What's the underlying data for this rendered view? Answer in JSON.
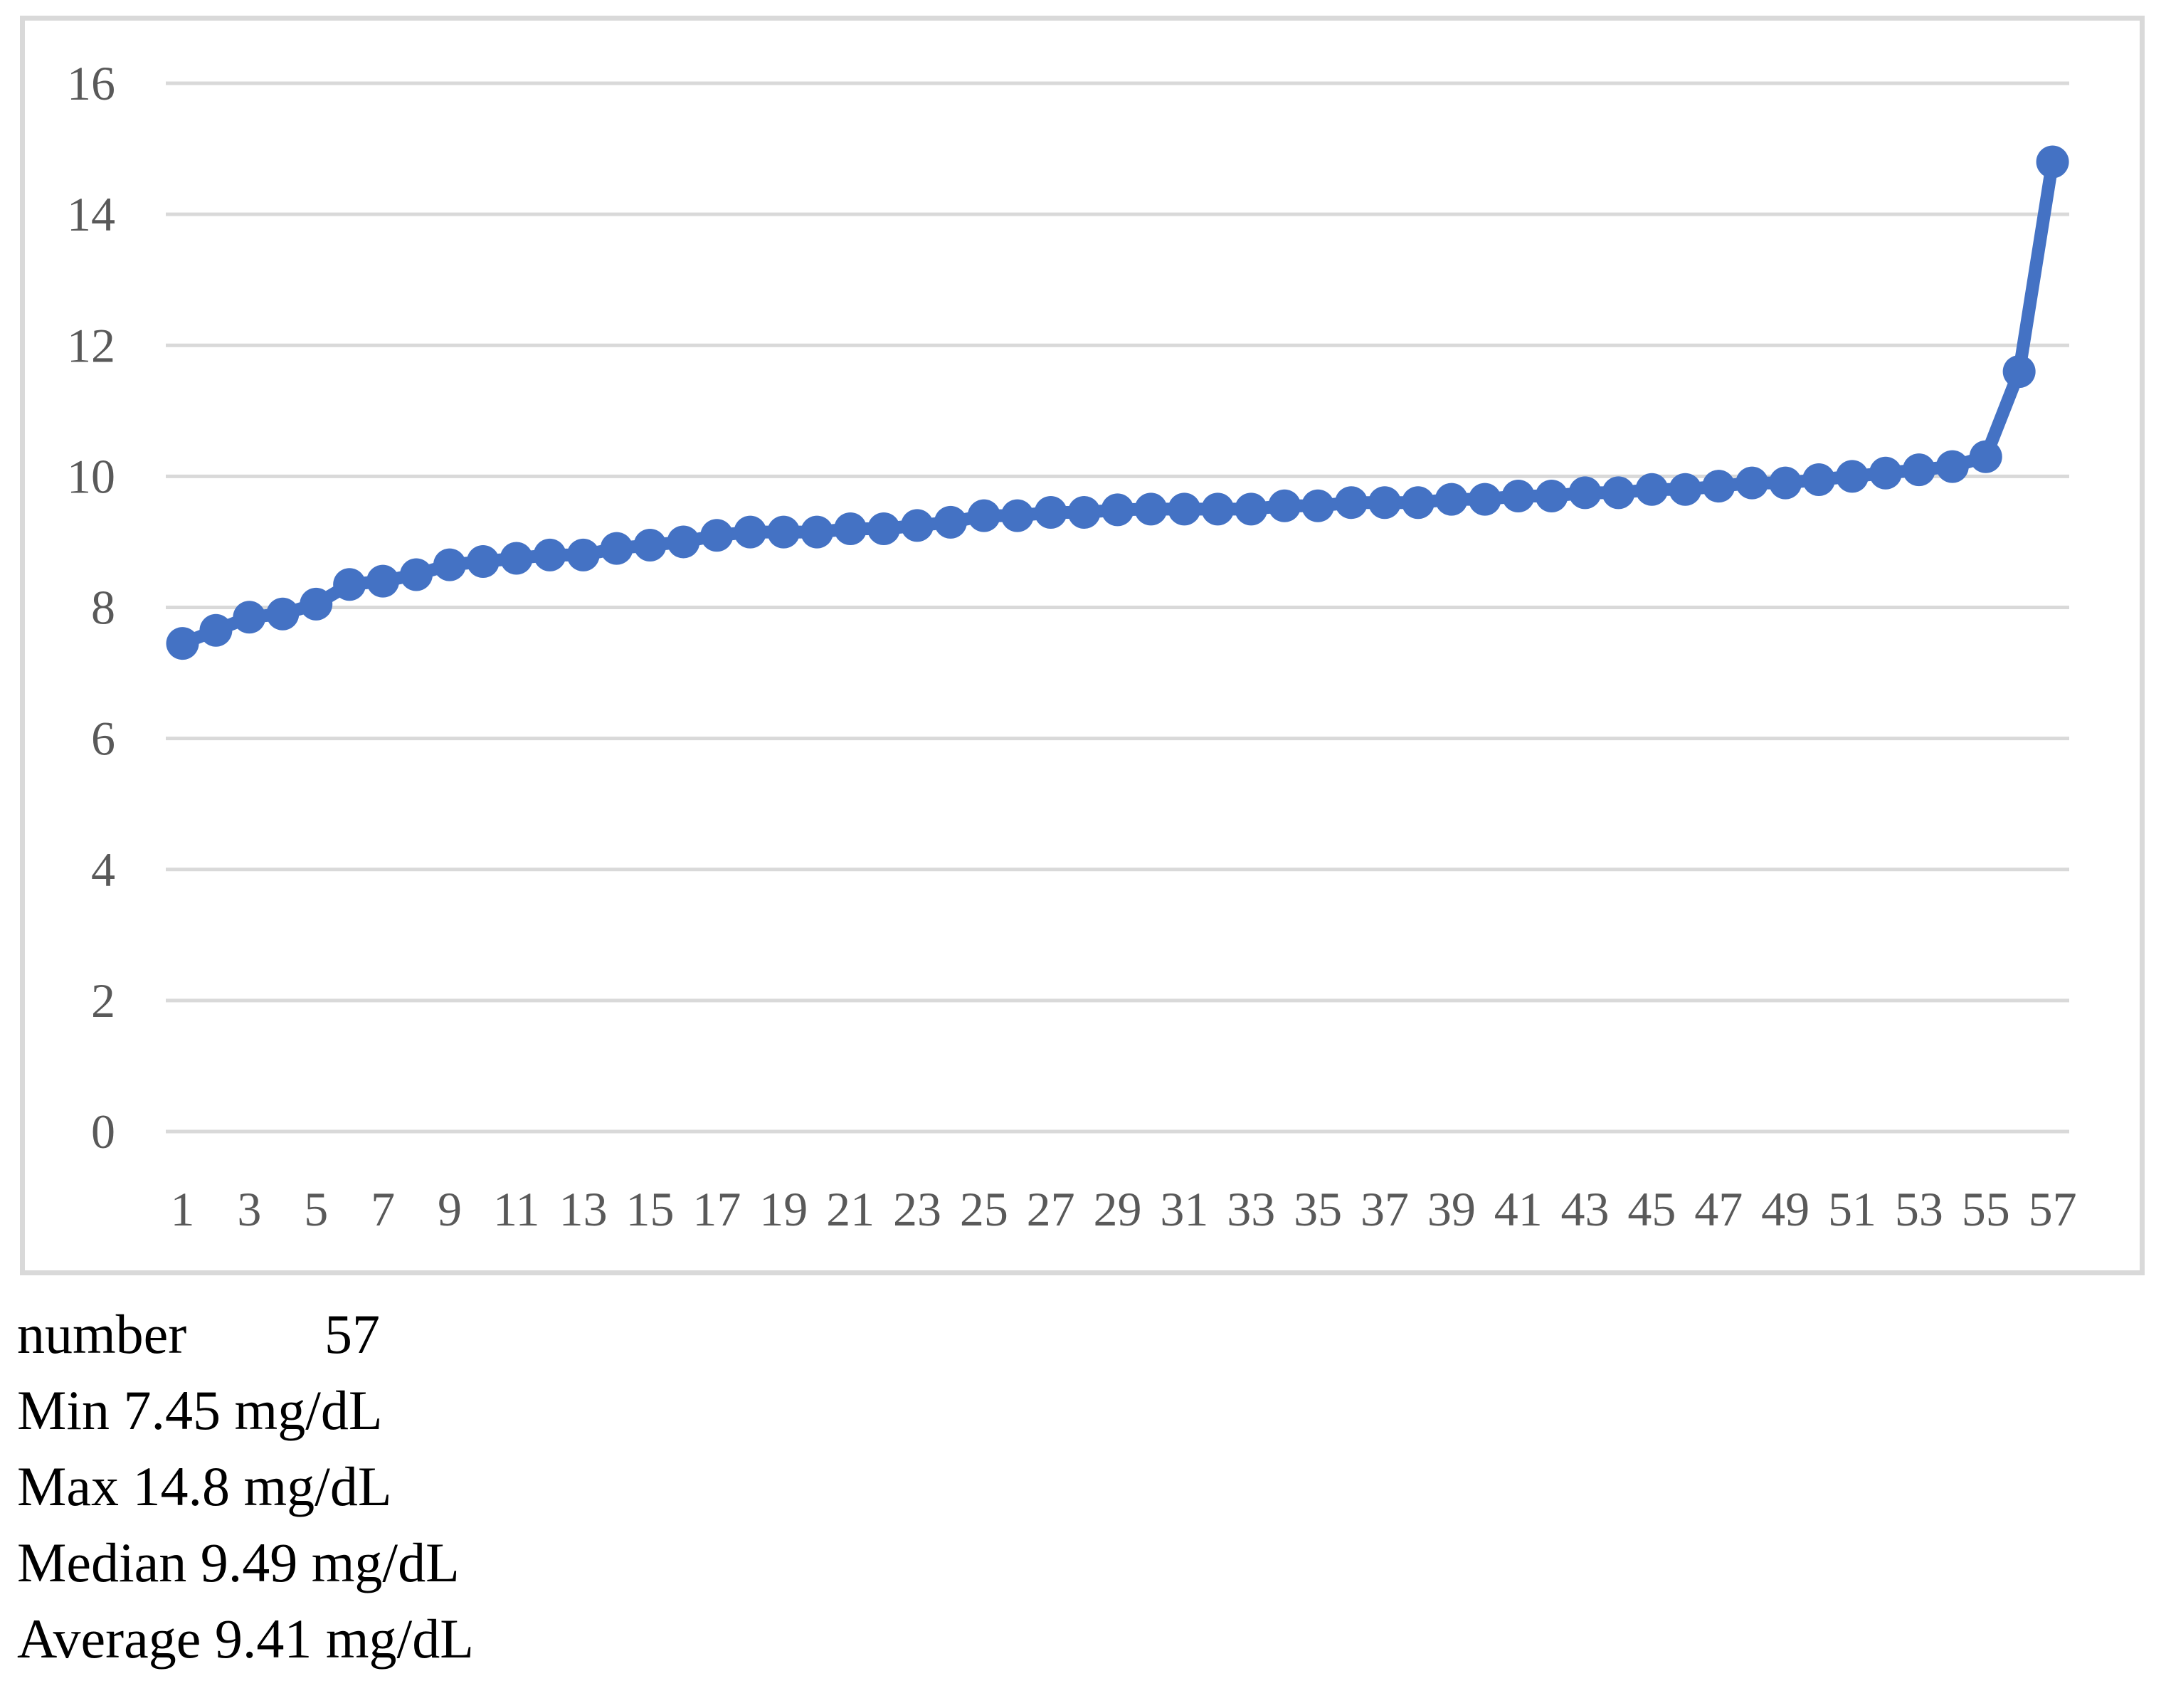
{
  "chart_data": {
    "type": "line",
    "title": "",
    "xlabel": "",
    "ylabel": "",
    "x": [
      1,
      2,
      3,
      4,
      5,
      6,
      7,
      8,
      9,
      10,
      11,
      12,
      13,
      14,
      15,
      16,
      17,
      18,
      19,
      20,
      21,
      22,
      23,
      24,
      25,
      26,
      27,
      28,
      29,
      30,
      31,
      32,
      33,
      34,
      35,
      36,
      37,
      38,
      39,
      40,
      41,
      42,
      43,
      44,
      45,
      46,
      47,
      48,
      49,
      50,
      51,
      52,
      53,
      54,
      55,
      56,
      57
    ],
    "values": [
      7.45,
      7.65,
      7.85,
      7.9,
      8.05,
      8.35,
      8.4,
      8.5,
      8.65,
      8.7,
      8.75,
      8.8,
      8.8,
      8.9,
      8.95,
      9.0,
      9.1,
      9.15,
      9.15,
      9.15,
      9.2,
      9.2,
      9.25,
      9.3,
      9.4,
      9.4,
      9.45,
      9.45,
      9.49,
      9.5,
      9.5,
      9.5,
      9.5,
      9.55,
      9.55,
      9.6,
      9.6,
      9.6,
      9.65,
      9.65,
      9.7,
      9.7,
      9.75,
      9.75,
      9.8,
      9.8,
      9.85,
      9.9,
      9.9,
      9.95,
      10.0,
      10.05,
      10.1,
      10.15,
      10.3,
      11.6,
      14.8
    ],
    "ylim": [
      0,
      16
    ],
    "y_ticks": [
      "16",
      "14",
      "12",
      "10",
      "8",
      "6",
      "4",
      "2",
      "0"
    ],
    "y_tick_values": [
      16,
      14,
      12,
      10,
      8,
      6,
      4,
      2,
      0
    ],
    "x_tick_labels": [
      "1",
      "3",
      "5",
      "7",
      "9",
      "11",
      "13",
      "15",
      "17",
      "19",
      "21",
      "23",
      "25",
      "27",
      "29",
      "31",
      "33",
      "35",
      "37",
      "39",
      "41",
      "43",
      "45",
      "47",
      "49",
      "51",
      "53",
      "55",
      "57"
    ],
    "grid": "horizontal",
    "legend": "none",
    "marker": "circle",
    "series_color": "#4472C4"
  },
  "colors": {
    "series": "#4472C4",
    "gridline": "#D9D9D9",
    "frame_border": "#D9D9D9",
    "axis_text": "#595959",
    "caption_text": "#000000"
  },
  "stats": {
    "number_label": "number",
    "number_value": "57",
    "min_line": "Min 7.45 mg/dL",
    "max_line": "Max 14.8 mg/dL",
    "median_line": "Median 9.49 mg/dL",
    "average_line": "Average 9.41 mg/dL"
  }
}
